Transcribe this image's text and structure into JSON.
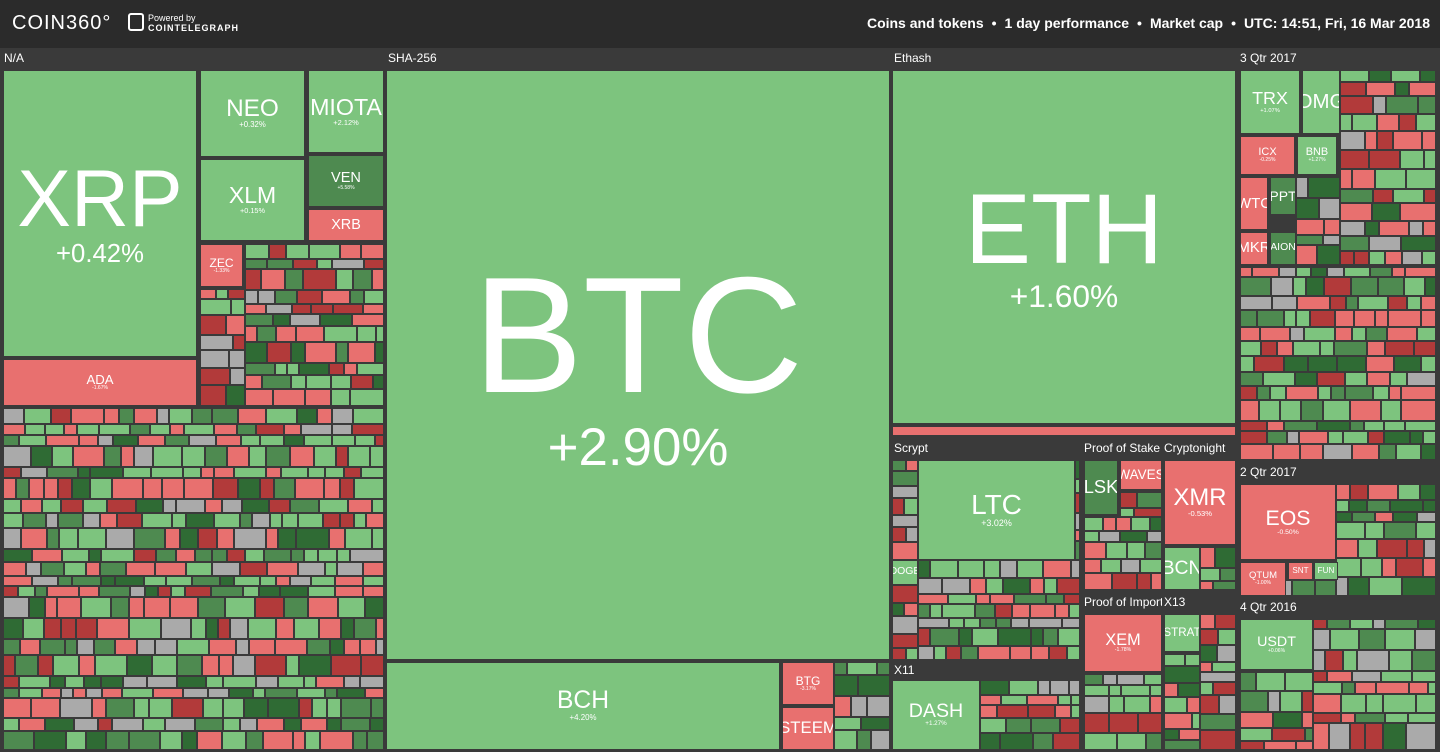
{
  "header": {
    "logo": "COIN360°",
    "powered": "Powered by",
    "brand": "COINTELEGRAPH",
    "filters": [
      "Coins and tokens",
      "1 day performance",
      "Market cap",
      "UTC: 14:51, Fri, 16 Mar 2018"
    ]
  },
  "groups": [
    {
      "name": "N/A",
      "tiles": [
        {
          "label": "XRP",
          "change": "+0.42%",
          "color": "#7dc47e"
        },
        {
          "label": "NEO",
          "change": "+0.32%",
          "color": "#7dc47e"
        },
        {
          "label": "MIOTA",
          "change": "+2.12%",
          "color": "#7dc47e"
        },
        {
          "label": "XLM",
          "change": "+0.15%",
          "color": "#7dc47e"
        },
        {
          "label": "VEN",
          "change": "+5.58%",
          "color": "#4e8a50"
        },
        {
          "label": "XRB",
          "color": "#e8706f"
        },
        {
          "label": "ADA",
          "change": "-1.67%",
          "color": "#e8706f"
        },
        {
          "label": "ZEC",
          "change": "-1.33%",
          "color": "#e8706f"
        }
      ]
    },
    {
      "name": "SHA-256",
      "tiles": [
        {
          "label": "BTC",
          "change": "+2.90%",
          "color": "#7dc47e"
        },
        {
          "label": "BCH",
          "change": "+4.20%",
          "color": "#7dc47e"
        },
        {
          "label": "BTG",
          "change": "-3.17%",
          "color": "#e8706f"
        },
        {
          "label": "STEEM",
          "color": "#e8706f"
        }
      ]
    },
    {
      "name": "Ethash",
      "tiles": [
        {
          "label": "ETH",
          "change": "+1.60%",
          "color": "#7dc47e"
        }
      ]
    },
    {
      "name": "3 Qtr 2017",
      "tiles": [
        {
          "label": "TRX",
          "change": "+1.07%",
          "color": "#7dc47e"
        },
        {
          "label": "OMG",
          "color": "#7dc47e"
        },
        {
          "label": "ICX",
          "change": "-0.25%",
          "color": "#e8706f"
        },
        {
          "label": "BNB",
          "change": "+1.27%",
          "color": "#7dc47e"
        },
        {
          "label": "WTC",
          "color": "#e8706f"
        },
        {
          "label": "PPT",
          "color": "#4e8a50"
        },
        {
          "label": "MKR",
          "color": "#e8706f"
        },
        {
          "label": "AION",
          "color": "#4e8a50"
        }
      ]
    },
    {
      "name": "Scrypt",
      "tiles": [
        {
          "label": "LTC",
          "change": "+3.02%",
          "color": "#7dc47e"
        },
        {
          "label": "DOGE",
          "color": "#7dc47e"
        }
      ]
    },
    {
      "name": "Proof of Stake",
      "tiles": [
        {
          "label": "LSK",
          "color": "#4e8a50"
        },
        {
          "label": "WAVES",
          "color": "#e8706f"
        }
      ]
    },
    {
      "name": "Cryptonight",
      "tiles": [
        {
          "label": "XMR",
          "change": "-0.53%",
          "color": "#e8706f"
        },
        {
          "label": "BCN",
          "color": "#7dc47e"
        }
      ]
    },
    {
      "name": "2 Qtr 2017",
      "tiles": [
        {
          "label": "EOS",
          "change": "-0.50%",
          "color": "#e8706f"
        },
        {
          "label": "QTUM",
          "change": "-1.00%",
          "color": "#e8706f"
        },
        {
          "label": "SNT",
          "color": "#e8706f"
        },
        {
          "label": "FUN",
          "color": "#7dc47e"
        }
      ]
    },
    {
      "name": "Proof of Importa",
      "tiles": [
        {
          "label": "XEM",
          "change": "-1.78%",
          "color": "#e8706f"
        }
      ]
    },
    {
      "name": "X13",
      "tiles": [
        {
          "label": "STRAT",
          "color": "#7dc47e"
        }
      ]
    },
    {
      "name": "4 Qtr 2016",
      "tiles": [
        {
          "label": "USDT",
          "change": "+0.06%",
          "color": "#7dc47e"
        }
      ]
    },
    {
      "name": "X11",
      "tiles": [
        {
          "label": "DASH",
          "change": "+1.27%",
          "color": "#7dc47e"
        }
      ]
    }
  ]
}
